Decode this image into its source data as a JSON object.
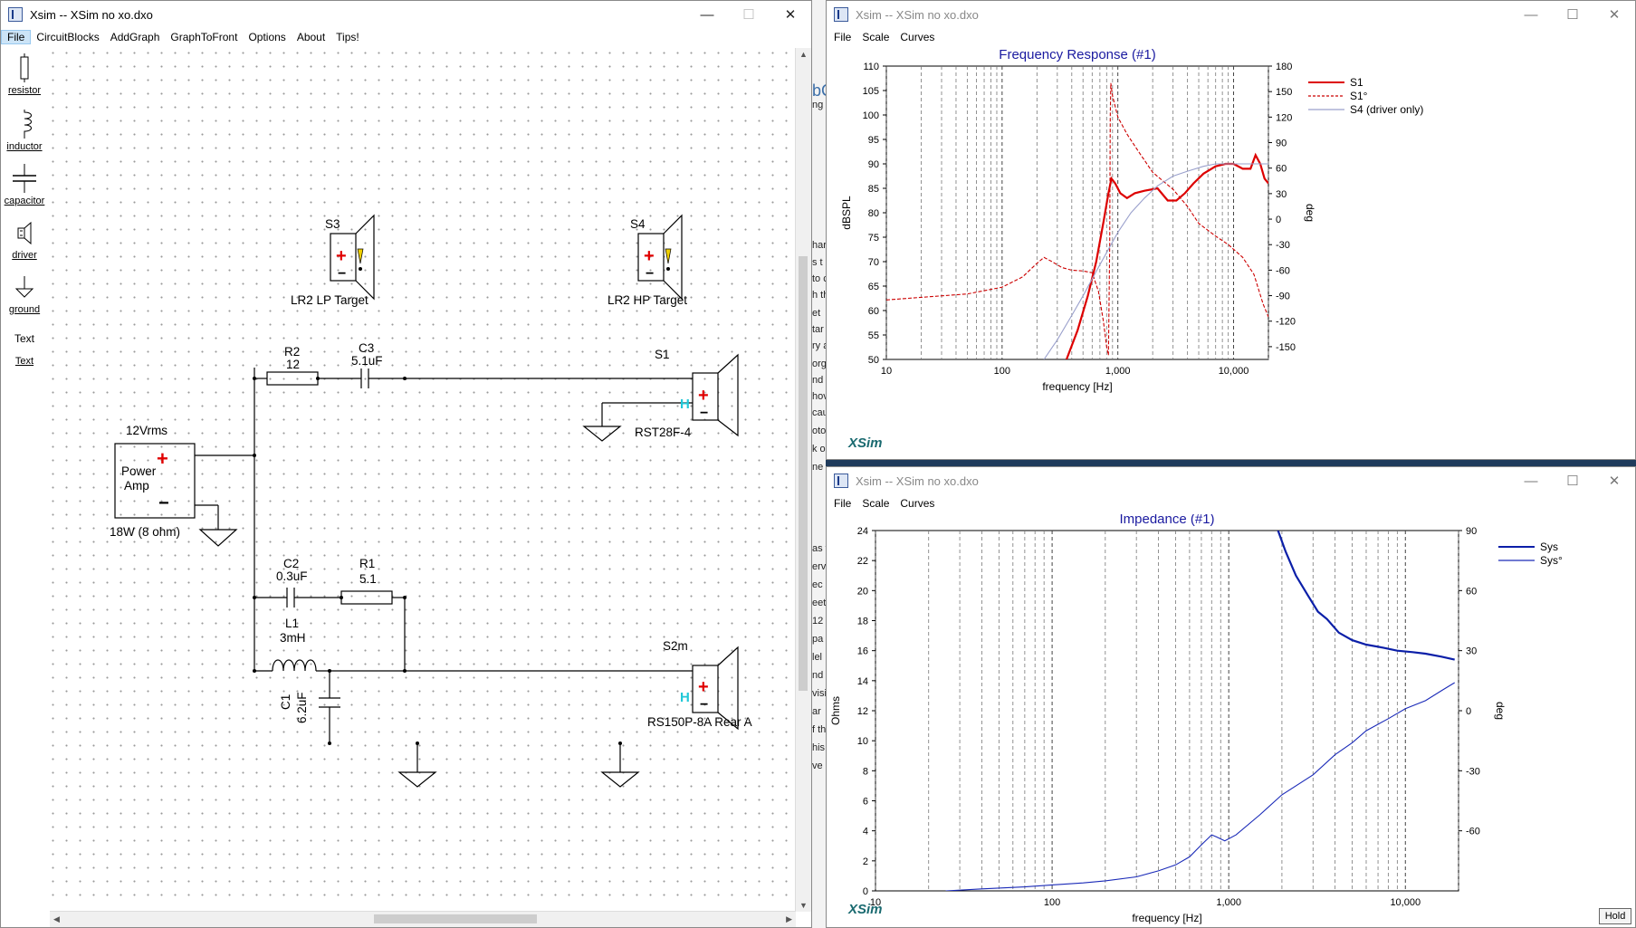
{
  "schematic_window": {
    "title": "Xsim -- XSim no xo.dxo",
    "menu": [
      "File",
      "CircuitBlocks",
      "AddGraph",
      "GraphToFront",
      "Options",
      "About",
      "Tips!"
    ],
    "palette": [
      "resistor",
      "inductor",
      "capacitor",
      "driver",
      "ground",
      "Text"
    ],
    "palette_text_icon": "Text",
    "components": {
      "s3_name": "S3",
      "s3_label": "LR2 LP Target",
      "s4_name": "S4",
      "s4_label": "LR2 HP Target",
      "r2_name": "R2",
      "r2_value": "12",
      "c3_name": "C3",
      "c3_value": "5.1uF",
      "s1_name": "S1",
      "s1_label": "RST28F-4",
      "amp_voltage": "12Vrms",
      "amp_line1": "Power",
      "amp_line2": "Amp",
      "amp_power": "18W (8 ohm)",
      "c2_name": "C2",
      "c2_value": "0.3uF",
      "r1_name": "R1",
      "r1_value": "5.1",
      "l1_name": "L1",
      "l1_value": "3mH",
      "c1_name": "C1",
      "c1_value": "6.2uF",
      "s2_name": "S2m",
      "s2_label": "RS150P-8A Rear A"
    }
  },
  "background_strip": [
    "bC",
    "ng",
    "har",
    "s t",
    "to c",
    "h th",
    "et",
    "tar",
    "ry a",
    "org",
    "nd",
    "hov",
    "cau",
    "oto",
    "k o",
    "ne",
    "as v",
    "erv",
    "ec",
    "eet",
    "12",
    "pa",
    "lel",
    "nd",
    "visi",
    "ar",
    "f th",
    "his",
    "ve"
  ],
  "freq_window": {
    "title": "Xsim -- XSim no xo.dxo",
    "menu": [
      "File",
      "Scale",
      "Curves"
    ],
    "logo": "XSim"
  },
  "imp_window": {
    "title": "Xsim -- XSim no xo.dxo",
    "menu": [
      "File",
      "Scale",
      "Curves"
    ],
    "logo": "XSim",
    "hold": "Hold"
  },
  "chart_data": [
    {
      "type": "line",
      "title": "Frequency Response (#1)",
      "xlabel": "frequency [Hz]",
      "ylabel": "dBSPL",
      "y2label": "deg",
      "xscale": "log",
      "xlim": [
        10,
        20000
      ],
      "ylim": [
        50,
        110
      ],
      "y2lim": [
        -165,
        180
      ],
      "xticks": [
        "10",
        "100",
        "1,000",
        "10,000"
      ],
      "yticks": [
        "50",
        "55",
        "60",
        "65",
        "70",
        "75",
        "80",
        "85",
        "90",
        "95",
        "100",
        "105",
        "110"
      ],
      "y2ticks": [
        "-150",
        "-120",
        "-90",
        "-60",
        "-30",
        "0",
        "30",
        "60",
        "90",
        "120",
        "150",
        "180"
      ],
      "legend_position": "right",
      "series": [
        {
          "name": "S1",
          "axis": "y",
          "color": "#dd0000",
          "style": "solid",
          "x": [
            360,
            450,
            550,
            650,
            750,
            830,
            880,
            950,
            1050,
            1200,
            1400,
            1700,
            2200,
            2700,
            3200,
            3800,
            4500,
            5500,
            7000,
            8500,
            10000,
            12000,
            14000,
            15500,
            17000,
            18500,
            20000
          ],
          "y": [
            50,
            56,
            63,
            70,
            78,
            84,
            87,
            86,
            84,
            83,
            84,
            84.5,
            85,
            82.5,
            82.5,
            84,
            86,
            88,
            89.5,
            90,
            90,
            89,
            89,
            91.8,
            90,
            87,
            86
          ]
        },
        {
          "name": "S1°",
          "axis": "y2",
          "color": "#cc0000",
          "style": "dashed",
          "x": [
            10,
            20,
            50,
            100,
            150,
            200,
            230,
            270,
            330,
            400,
            500,
            600,
            680,
            750,
            800,
            830,
            850,
            860,
            870,
            900,
            1000,
            1200,
            1500,
            2000,
            3000,
            4000,
            5000,
            7000,
            9000,
            12000,
            15000,
            18000,
            20000
          ],
          "y": [
            -95,
            -92,
            -88,
            -80,
            -68,
            -52,
            -45,
            -50,
            -57,
            -60,
            -61,
            -63,
            -85,
            -120,
            -150,
            -160,
            -30,
            120,
            160,
            145,
            120,
            100,
            80,
            55,
            35,
            15,
            -5,
            -20,
            -30,
            -45,
            -65,
            -100,
            -115
          ]
        },
        {
          "name": "S4 (driver only)",
          "axis": "y",
          "color": "#9aa0cc",
          "style": "solid",
          "x": [
            230,
            300,
            400,
            500,
            650,
            850,
            1000,
            1300,
            1700,
            2200,
            3000,
            4000,
            5500,
            7000,
            9000,
            12000,
            16000,
            20000
          ],
          "y": [
            50,
            54,
            59,
            63,
            68,
            73,
            76,
            80,
            83,
            85.5,
            87.5,
            88.5,
            89.5,
            90,
            90,
            90,
            90,
            90
          ]
        }
      ]
    },
    {
      "type": "line",
      "title": "Impedance (#1)",
      "xlabel": "frequency [Hz]",
      "ylabel": "Ohms",
      "y2label": "deg",
      "xscale": "log",
      "xlim": [
        10,
        20000
      ],
      "ylim": [
        0,
        24
      ],
      "y2lim": [
        -90,
        90
      ],
      "xticks": [
        "10",
        "100",
        "1,000",
        "10,000"
      ],
      "yticks": [
        "0",
        "2",
        "4",
        "6",
        "8",
        "10",
        "12",
        "14",
        "16",
        "18",
        "20",
        "22",
        "24"
      ],
      "y2ticks": [
        "-60",
        "-30",
        "0",
        "30",
        "60",
        "90"
      ],
      "legend_position": "right",
      "series": [
        {
          "name": "Sys",
          "axis": "y",
          "color": "#0b1fa8",
          "style": "solid",
          "x": [
            1900,
            2100,
            2400,
            2800,
            3200,
            3600,
            4200,
            5000,
            6000,
            7500,
            9000,
            11000,
            13000,
            16000,
            19000
          ],
          "y": [
            24,
            22.6,
            21,
            19.7,
            18.6,
            18.1,
            17.2,
            16.7,
            16.4,
            16.2,
            16,
            15.9,
            15.8,
            15.6,
            15.4
          ]
        },
        {
          "name": "Sys°",
          "axis": "y2",
          "color": "#1a2ab8",
          "style": "solid",
          "x": [
            25,
            40,
            70,
            100,
            150,
            200,
            300,
            400,
            500,
            600,
            700,
            800,
            850,
            950,
            1100,
            1500,
            2000,
            3000,
            4000,
            5000,
            6000,
            8000,
            10000,
            13000,
            16000,
            19000
          ],
          "y": [
            -90,
            -89,
            -88,
            -87,
            -86,
            -85,
            -83,
            -80,
            -77,
            -73,
            -67,
            -62,
            -63,
            -65,
            -62,
            -52,
            -42,
            -32,
            -22,
            -16,
            -10,
            -4,
            1,
            5,
            10,
            14
          ]
        }
      ]
    }
  ]
}
